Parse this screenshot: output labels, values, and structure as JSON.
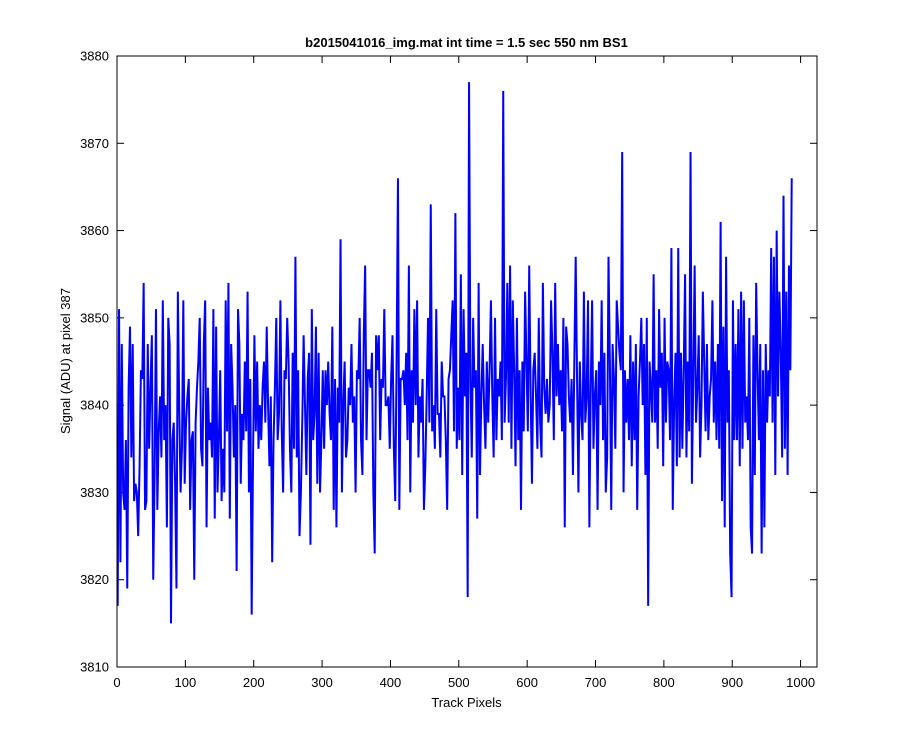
{
  "chart_data": {
    "type": "line",
    "title": "b2015041016_img.mat int time = 1.5 sec  550 nm BS1",
    "xlabel": "Track Pixels",
    "ylabel": "Signal (ADU) at pixel 387",
    "xlim": [
      0,
      1024
    ],
    "ylim": [
      3810,
      3880
    ],
    "x_ticks": [
      0,
      100,
      200,
      300,
      400,
      500,
      600,
      700,
      800,
      900,
      1000
    ],
    "y_ticks": [
      3810,
      3820,
      3830,
      3840,
      3850,
      3860,
      3870,
      3880
    ],
    "grid": false,
    "legend": "none",
    "series": [
      {
        "color": "#0000ff",
        "x_start": 1,
        "x_step": 2,
        "values": [
          3817,
          3851,
          3822,
          3847,
          3830,
          3828,
          3836,
          3819,
          3842,
          3849,
          3834,
          3847,
          3829,
          3831,
          3830,
          3825,
          3833,
          3844,
          3843,
          3854,
          3828,
          3829,
          3847,
          3835,
          3842,
          3848,
          3820,
          3832,
          3851,
          3828,
          3837,
          3841,
          3834,
          3852,
          3836,
          3840,
          3826,
          3850,
          3847,
          3815,
          3836,
          3838,
          3831,
          3819,
          3853,
          3840,
          3830,
          3835,
          3852,
          3831,
          3838,
          3841,
          3843,
          3828,
          3836,
          3837,
          3820,
          3838,
          3842,
          3845,
          3850,
          3835,
          3833,
          3847,
          3852,
          3826,
          3842,
          3836,
          3838,
          3834,
          3851,
          3827,
          3849,
          3830,
          3836,
          3844,
          3829,
          3835,
          3830,
          3852,
          3837,
          3854,
          3827,
          3847,
          3842,
          3834,
          3840,
          3821,
          3851,
          3847,
          3831,
          3839,
          3836,
          3845,
          3837,
          3853,
          3830,
          3843,
          3816,
          3834,
          3848,
          3837,
          3845,
          3835,
          3840,
          3836,
          3842,
          3845,
          3838,
          3849,
          3840,
          3833,
          3841,
          3822,
          3836,
          3842,
          3850,
          3836,
          3839,
          3852,
          3837,
          3830,
          3844,
          3843,
          3850,
          3845,
          3835,
          3830,
          3846,
          3835,
          3857,
          3834,
          3844,
          3825,
          3830,
          3838,
          3848,
          3840,
          3832,
          3843,
          3846,
          3824,
          3851,
          3836,
          3839,
          3849,
          3831,
          3846,
          3830,
          3836,
          3844,
          3835,
          3844,
          3840,
          3845,
          3839,
          3836,
          3849,
          3828,
          3843,
          3826,
          3842,
          3838,
          3859,
          3830,
          3840,
          3845,
          3834,
          3836,
          3842,
          3840,
          3847,
          3838,
          3841,
          3830,
          3844,
          3843,
          3850,
          3836,
          3832,
          3848,
          3856,
          3836,
          3844,
          3844,
          3842,
          3846,
          3830,
          3823,
          3848,
          3844,
          3848,
          3836,
          3843,
          3842,
          3851,
          3840,
          3840,
          3841,
          3835,
          3843,
          3848,
          3835,
          3829,
          3845,
          3866,
          3828,
          3843,
          3843,
          3844,
          3840,
          3846,
          3836,
          3856,
          3830,
          3844,
          3838,
          3851,
          3840,
          3852,
          3834,
          3841,
          3838,
          3843,
          3828,
          3833,
          3841,
          3850,
          3838,
          3863,
          3837,
          3840,
          3835,
          3851,
          3839,
          3839,
          3834,
          3845,
          3841,
          3841,
          3836,
          3828,
          3843,
          3844,
          3848,
          3852,
          3837,
          3862,
          3835,
          3842,
          3836,
          3855,
          3832,
          3851,
          3841,
          3846,
          3818,
          3877,
          3843,
          3834,
          3850,
          3842,
          3844,
          3827,
          3854,
          3832,
          3841,
          3847,
          3840,
          3835,
          3845,
          3838,
          3844,
          3852,
          3841,
          3834,
          3850,
          3836,
          3843,
          3841,
          3845,
          3836,
          3876,
          3838,
          3843,
          3854,
          3838,
          3856,
          3835,
          3852,
          3844,
          3833,
          3850,
          3836,
          3844,
          3828,
          3845,
          3837,
          3853,
          3845,
          3837,
          3856,
          3842,
          3831,
          3844,
          3846,
          3841,
          3835,
          3850,
          3838,
          3834,
          3854,
          3842,
          3839,
          3843,
          3838,
          3840,
          3852,
          3846,
          3836,
          3854,
          3841,
          3847,
          3840,
          3844,
          3837,
          3850,
          3826,
          3849,
          3847,
          3841,
          3838,
          3843,
          3832,
          3845,
          3857,
          3843,
          3830,
          3845,
          3839,
          3836,
          3853,
          3838,
          3841,
          3852,
          3826,
          3842,
          3852,
          3835,
          3841,
          3844,
          3828,
          3845,
          3840,
          3852,
          3836,
          3846,
          3830,
          3834,
          3857,
          3845,
          3828,
          3847,
          3843,
          3835,
          3852,
          3849,
          3846,
          3844,
          3869,
          3830,
          3844,
          3838,
          3843,
          3836,
          3848,
          3833,
          3845,
          3836,
          3847,
          3828,
          3841,
          3845,
          3850,
          3840,
          3847,
          3832,
          3850,
          3817,
          3845,
          3842,
          3838,
          3855,
          3838,
          3844,
          3835,
          3851,
          3842,
          3846,
          3833,
          3850,
          3838,
          3845,
          3844,
          3836,
          3858,
          3828,
          3840,
          3846,
          3833,
          3858,
          3834,
          3846,
          3835,
          3844,
          3855,
          3834,
          3845,
          3837,
          3869,
          3831,
          3843,
          3856,
          3838,
          3842,
          3848,
          3834,
          3840,
          3853,
          3845,
          3837,
          3847,
          3836,
          3841,
          3843,
          3852,
          3838,
          3845,
          3836,
          3847,
          3835,
          3861,
          3829,
          3849,
          3826,
          3857,
          3838,
          3844,
          3823,
          3818,
          3852,
          3836,
          3847,
          3836,
          3851,
          3833,
          3853,
          3835,
          3852,
          3838,
          3841,
          3836,
          3850,
          3826,
          3823,
          3848,
          3832,
          3854,
          3844,
          3836,
          3847,
          3823,
          3844,
          3826,
          3847,
          3838,
          3844,
          3841,
          3858,
          3838,
          3857,
          3832,
          3860,
          3841,
          3853,
          3846,
          3834,
          3864,
          3835,
          3853,
          3832,
          3856,
          3844,
          3866
        ]
      }
    ]
  }
}
